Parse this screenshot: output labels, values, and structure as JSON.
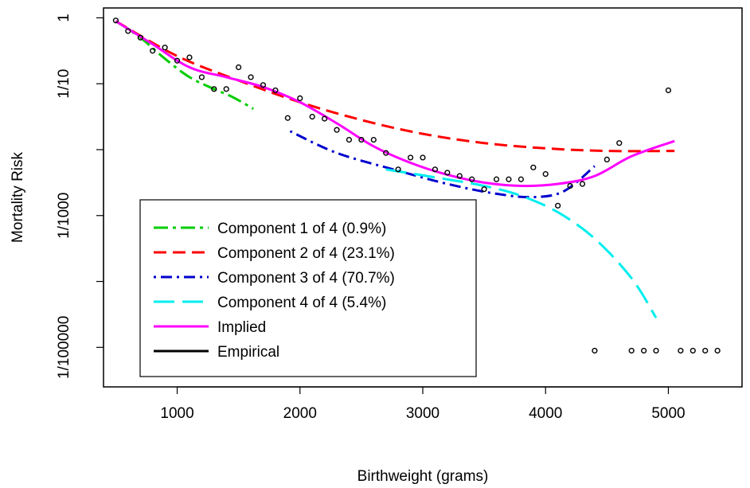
{
  "chart_data": {
    "type": "line",
    "xlabel": "Birthweight (grams)",
    "ylabel": "Mortality Risk",
    "xlim": [
      400,
      5600
    ],
    "ylim_log10": [
      -5.6,
      0.15
    ],
    "x_ticks": [
      1000,
      2000,
      3000,
      4000,
      5000
    ],
    "x_tick_labels": [
      "1000",
      "2000",
      "3000",
      "4000",
      "5000"
    ],
    "y_ticks_log10": [
      0,
      -1,
      -2,
      -3,
      -4,
      -5
    ],
    "y_tick_labels": [
      "1",
      "1/10",
      "",
      "1/1000",
      "",
      "1/100000"
    ],
    "legend_position": "bottom-left",
    "series": [
      {
        "name": "Component 1 of 4 (0.9%)",
        "style": "longdash-dot",
        "color": "#00cd00",
        "x": [
          500,
          700,
          900,
          1100,
          1300,
          1450,
          1620
        ],
        "y_log10": [
          -0.05,
          -0.3,
          -0.62,
          -0.9,
          -1.08,
          -1.2,
          -1.38
        ]
      },
      {
        "name": "Component 2 of 4 (23.1%)",
        "style": "dashed",
        "color": "#ff0000",
        "x": [
          500,
          1000,
          1500,
          2000,
          2500,
          3000,
          3500,
          4000,
          4500,
          5050
        ],
        "y_log10": [
          -0.05,
          -0.58,
          -0.95,
          -1.28,
          -1.55,
          -1.76,
          -1.9,
          -1.98,
          -2.02,
          -2.02
        ]
      },
      {
        "name": "Component 3 of 4 (70.7%)",
        "style": "dotdash",
        "color": "#0000cd",
        "x": [
          1920,
          2300,
          2800,
          3200,
          3600,
          3900,
          4150,
          4400
        ],
        "y_log10": [
          -1.72,
          -2.05,
          -2.32,
          -2.52,
          -2.67,
          -2.72,
          -2.63,
          -2.25
        ]
      },
      {
        "name": "Component 4 of 4 (5.4%)",
        "style": "longdash",
        "color": "#00eeee",
        "x": [
          2700,
          3100,
          3500,
          3800,
          4100,
          4400,
          4700,
          4900
        ],
        "y_log10": [
          -2.3,
          -2.42,
          -2.55,
          -2.7,
          -2.95,
          -3.35,
          -3.95,
          -4.55
        ]
      },
      {
        "name": "Implied",
        "style": "solid",
        "color": "#ff00ff",
        "x": [
          500,
          800,
          1100,
          1400,
          1700,
          2000,
          2300,
          2600,
          2900,
          3200,
          3500,
          3800,
          4100,
          4400,
          4700,
          5050
        ],
        "y_log10": [
          -0.05,
          -0.4,
          -0.75,
          -0.9,
          -1.05,
          -1.28,
          -1.6,
          -1.95,
          -2.2,
          -2.38,
          -2.5,
          -2.55,
          -2.52,
          -2.4,
          -2.1,
          -1.87
        ]
      },
      {
        "name": "Empirical",
        "style": "solid",
        "color": "#000000",
        "x": [],
        "y_log10": []
      }
    ],
    "empirical_points": {
      "x": [
        500,
        600,
        700,
        800,
        900,
        1000,
        1100,
        1200,
        1300,
        1400,
        1500,
        1600,
        1700,
        1800,
        1900,
        2000,
        2100,
        2200,
        2300,
        2400,
        2500,
        2600,
        2700,
        2800,
        2900,
        3000,
        3100,
        3200,
        3300,
        3400,
        3500,
        3600,
        3700,
        3800,
        3900,
        4000,
        4100,
        4200,
        4300,
        4400,
        4500,
        4600,
        4700,
        4800,
        4900,
        5000,
        5100,
        5200,
        5300,
        5400
      ],
      "y_log10": [
        -0.04,
        -0.2,
        -0.3,
        -0.5,
        -0.45,
        -0.65,
        -0.6,
        -0.9,
        -1.08,
        -1.08,
        -0.75,
        -0.9,
        -1.02,
        -1.1,
        -1.52,
        -1.22,
        -1.5,
        -1.53,
        -1.7,
        -1.85,
        -1.85,
        -1.85,
        -2.05,
        -2.3,
        -2.12,
        -2.12,
        -2.3,
        -2.35,
        -2.4,
        -2.45,
        -2.6,
        -2.45,
        -2.45,
        -2.45,
        -2.27,
        -2.37,
        -2.85,
        -2.55,
        -2.52,
        -5.05,
        -2.15,
        -1.9,
        -5.05,
        -5.05,
        -5.05,
        -1.1,
        -5.05,
        -5.05,
        -5.05,
        -5.05
      ]
    }
  }
}
